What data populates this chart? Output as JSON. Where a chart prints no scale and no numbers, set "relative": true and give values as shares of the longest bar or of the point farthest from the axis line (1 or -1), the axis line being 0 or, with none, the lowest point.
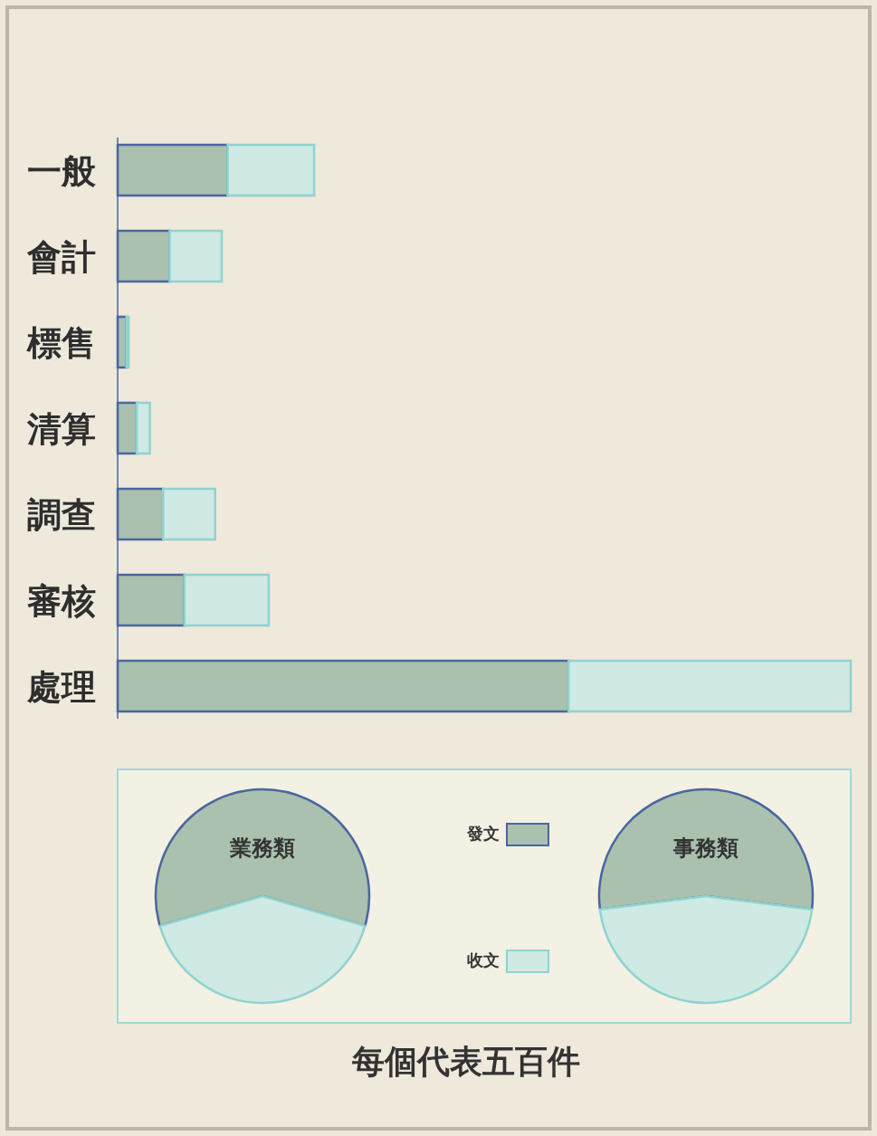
{
  "chart_data": [
    {
      "type": "bar",
      "orientation": "horizontal",
      "stacked": true,
      "relative": true,
      "categories": [
        "一般",
        "會計",
        "標售",
        "清算",
        "調查",
        "審核",
        "處理"
      ],
      "series": [
        {
          "name": "發文",
          "color": "#a9c1ae",
          "values": [
            0.15,
            0.071,
            0.012,
            0.026,
            0.062,
            0.091,
            0.615
          ]
        },
        {
          "name": "收文",
          "color": "#cfe9e4",
          "values": [
            0.118,
            0.071,
            0.003,
            0.018,
            0.071,
            0.115,
            0.385
          ]
        }
      ],
      "annotations": [
        "每個代表五百件"
      ],
      "legend": "right"
    },
    {
      "type": "pie",
      "title": "業務類",
      "categories": [
        null,
        null
      ],
      "values": [
        59,
        41
      ],
      "colors": [
        "#a9c1ae",
        "#cfe9e4"
      ]
    },
    {
      "type": "pie",
      "title": "事務類",
      "categories": [
        null,
        null
      ],
      "values": [
        54,
        46
      ],
      "colors": [
        "#a9c1ae",
        "#cfe9e4"
      ]
    }
  ]
}
